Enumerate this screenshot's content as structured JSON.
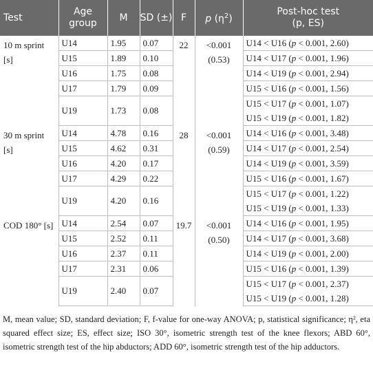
{
  "headers": {
    "test": "Test",
    "age_group": "Age group",
    "m": "M",
    "sd": "SD (±)",
    "f": "F",
    "p_eta_p": "p",
    "p_eta_rest": " (η",
    "p_eta_sup": "2",
    "p_eta_close": ")",
    "posthoc_line1": "Post-hoc test",
    "posthoc_line2": "(p, ES)"
  },
  "groups": [
    {
      "test": "10 m sprint [s]",
      "f": "22",
      "p": "<0.001 (0.53)",
      "rows": [
        {
          "age": "U14",
          "m": "1.95",
          "sd": "0.07",
          "posthoc": "U14 < U16 (p < 0.001, 2.60)"
        },
        {
          "age": "U15",
          "m": "1.89",
          "sd": "0.10",
          "posthoc": "U14 < U17 (p < 0.001, 1.96)"
        },
        {
          "age": "U16",
          "m": "1.75",
          "sd": "0.08",
          "posthoc": "U14 < U19 (p < 0.001, 2.94)"
        },
        {
          "age": "U17",
          "m": "1.79",
          "sd": "0.09",
          "posthoc": "U15 < U16 (p < 0.001, 1.56)"
        },
        {
          "age": "U19",
          "m": "1.73",
          "sd": "0.08",
          "posthoc": "U15 < U17 (p < 0.001, 1.07)"
        }
      ],
      "extra_posthoc": "U15 < U19 (p < 0.001, 1.82)"
    },
    {
      "test": "30 m sprint [s]",
      "f": "28",
      "p": "<0.001 (0.59)",
      "rows": [
        {
          "age": "U14",
          "m": "4.78",
          "sd": "0.16",
          "posthoc": "U14 < U16 (p < 0.001, 3.48)"
        },
        {
          "age": "U15",
          "m": "4.62",
          "sd": "0.31",
          "posthoc": "U14 < U17 (p < 0.001, 2.54)"
        },
        {
          "age": "U16",
          "m": "4.20",
          "sd": "0.17",
          "posthoc": "U14 < U19 (p < 0.001, 3.59)"
        },
        {
          "age": "U17",
          "m": "4.29",
          "sd": "0.22",
          "posthoc": "U15 < U16 (p < 0.001, 1.67)"
        },
        {
          "age": "U19",
          "m": "4.20",
          "sd": "0.16",
          "posthoc": "U15 < U17 (p < 0.001, 1.22)"
        }
      ],
      "extra_posthoc": "U15 < U19 (p < 0.001, 1.33)"
    },
    {
      "test": "COD 180° [s]",
      "f": "19.7",
      "p": "<0.001 (0.50)",
      "rows": [
        {
          "age": "U14",
          "m": "2.54",
          "sd": "0.07",
          "posthoc": "U14 < U16 (p < 0.001, 1.95)"
        },
        {
          "age": "U15",
          "m": "2.52",
          "sd": "0.11",
          "posthoc": "U14 < U17 (p < 0.001, 3.68)"
        },
        {
          "age": "U16",
          "m": "2.37",
          "sd": "0.11",
          "posthoc": "U14 < U19 (p < 0.001, 2.00)"
        },
        {
          "age": "U17",
          "m": "2.31",
          "sd": "0.06",
          "posthoc": "U15 < U16 (p < 0.001, 1.39)"
        },
        {
          "age": "U19",
          "m": "2.40",
          "sd": "0.07",
          "posthoc": "U15 < U17 (p < 0.001, 2.37)"
        }
      ],
      "extra_posthoc": "U15 < U19 (p < 0.001, 1.28)"
    }
  ],
  "footnote": "M, mean value; SD, standard deviation; F, f-value for one-way ANOVA; p, statistical significance; η², eta squared effect size; ES, effect size; ISO 30°, isometric strength test of the knee flexors; ABD 60°, isometric strength test of the hip abductors; ADD 60°, isometric strength test of the hip adductors."
}
